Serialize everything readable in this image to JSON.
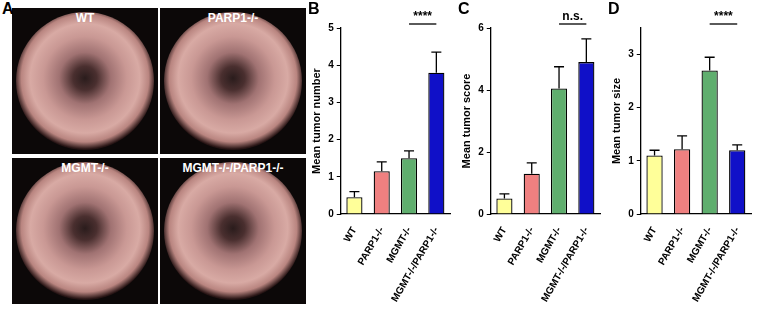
{
  "panel_a": {
    "title": "A",
    "images": [
      "WT",
      "PARP1-/-",
      "MGMT-/-",
      "MGMT-/-/PARP1-/-"
    ]
  },
  "chart_data": [
    {
      "type": "bar",
      "title": "B",
      "ylabel": "Mean tumor number",
      "categories": [
        "WT",
        "PARP1-/-",
        "MGMT-/-",
        "MGMT-/-/PARP1-/-"
      ],
      "values": [
        0.45,
        1.15,
        1.5,
        3.8
      ],
      "errors": [
        0.15,
        0.25,
        0.2,
        0.55
      ],
      "colors": [
        "#ffff99",
        "#ef8080",
        "#5fae6e",
        "#1010c8"
      ],
      "ylim": [
        0,
        5
      ],
      "yticks": [
        0,
        1,
        2,
        3,
        4,
        5
      ],
      "grid": false,
      "significance": [
        {
          "between": [
            "MGMT-/-",
            "MGMT-/-/PARP1-/-"
          ],
          "label": "****"
        }
      ]
    },
    {
      "type": "bar",
      "title": "C",
      "ylabel": "Mean tumor score",
      "categories": [
        "WT",
        "PARP1-/-",
        "MGMT-/-",
        "MGMT-/-/PARP1-/-"
      ],
      "values": [
        0.5,
        1.3,
        4.05,
        4.9
      ],
      "errors": [
        0.15,
        0.35,
        0.7,
        0.75
      ],
      "colors": [
        "#ffff99",
        "#ef8080",
        "#5fae6e",
        "#1010c8"
      ],
      "ylim": [
        0,
        6
      ],
      "yticks": [
        0,
        2,
        4,
        6
      ],
      "grid": false,
      "significance": [
        {
          "between": [
            "MGMT-/-",
            "MGMT-/-/PARP1-/-"
          ],
          "label": "n.s."
        }
      ]
    },
    {
      "type": "bar",
      "title": "D",
      "ylabel": "Mean tumor size",
      "categories": [
        "WT",
        "PARP1-/-",
        "MGMT-/-",
        "MGMT-/-/PARP1-/-"
      ],
      "values": [
        1.1,
        1.22,
        2.7,
        1.2
      ],
      "errors": [
        0.1,
        0.25,
        0.25,
        0.1
      ],
      "colors": [
        "#ffff99",
        "#ef8080",
        "#5fae6e",
        "#1010c8"
      ],
      "ylim": [
        0,
        3.5
      ],
      "yticks": [
        0,
        1,
        2,
        3
      ],
      "grid": false,
      "significance": [
        {
          "between": [
            "MGMT-/-",
            "MGMT-/-/PARP1-/-"
          ],
          "label": "****"
        }
      ]
    }
  ]
}
